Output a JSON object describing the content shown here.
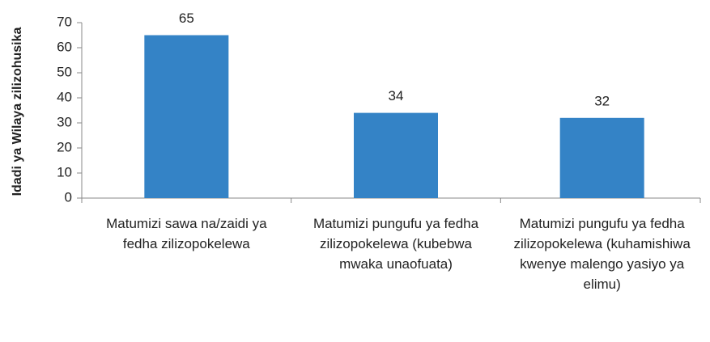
{
  "chart_data": {
    "type": "bar",
    "ylabel": "Idadi ya Wilaya zilizohusika",
    "categories": [
      "Matumizi sawa na/zaidi ya fedha zilizopokelewa",
      "Matumizi pungufu ya fedha zilizopokelewa (kubebwa mwaka unaofuata)",
      "Matumizi pungufu ya fedha zilizopokelewa (kuhamishiwa kwenye malengo yasiyo ya elimu)"
    ],
    "values": [
      65,
      34,
      32
    ],
    "color": "#3483c6",
    "ylim": [
      0,
      70
    ],
    "yticks": [
      0,
      10,
      20,
      30,
      40,
      50,
      60,
      70
    ],
    "grid": false
  }
}
